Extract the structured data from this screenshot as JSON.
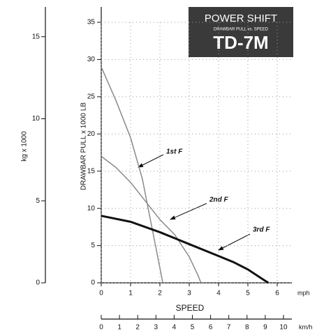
{
  "chart_data": {
    "type": "line",
    "title": "POWER SHIFT",
    "subtitle": "DRAWBAR PULL vs. SPEED",
    "model": "TD-7M",
    "y_label": "DRAWBAR PULL x 1000 LB",
    "y2_label": "kg x 1000",
    "x_label": "SPEED",
    "x_unit": "mph",
    "x2_unit": "km/h",
    "xlim": [
      0,
      6.5
    ],
    "xticks": [
      0,
      1,
      2,
      3,
      4,
      5,
      6
    ],
    "ylim": [
      0,
      35
    ],
    "yticks": [
      0,
      5,
      10,
      15,
      20,
      25,
      30,
      35
    ],
    "y2lim": [
      0,
      15.88
    ],
    "y2ticks": [
      0,
      5,
      10,
      15
    ],
    "x2lim": [
      0,
      10.46
    ],
    "x2ticks": [
      0,
      1,
      2,
      3,
      4,
      5,
      6,
      7,
      8,
      9,
      10
    ],
    "grid": true,
    "series": [
      {
        "name": "1st F",
        "color": "#8a8a8a",
        "width": 1.5,
        "x": [
          0,
          0.5,
          1,
          1.4,
          1.7,
          1.9,
          2.1
        ],
        "values": [
          29,
          24.5,
          19.5,
          14,
          8,
          4,
          0
        ]
      },
      {
        "name": "2nd F",
        "color": "#8a8a8a",
        "width": 1.5,
        "x": [
          0,
          0.5,
          1,
          1.5,
          2,
          2.5,
          3,
          3.3,
          3.4
        ],
        "values": [
          17,
          15.5,
          13.5,
          11,
          8.5,
          6.5,
          3.5,
          1,
          0
        ]
      },
      {
        "name": "3rd F",
        "color": "#111111",
        "width": 3,
        "x": [
          0,
          1,
          2,
          3,
          4,
          4.5,
          5,
          5.5,
          5.7
        ],
        "values": [
          9,
          8.2,
          6.8,
          5.2,
          3.6,
          2.8,
          1.8,
          0.5,
          0
        ]
      }
    ]
  }
}
